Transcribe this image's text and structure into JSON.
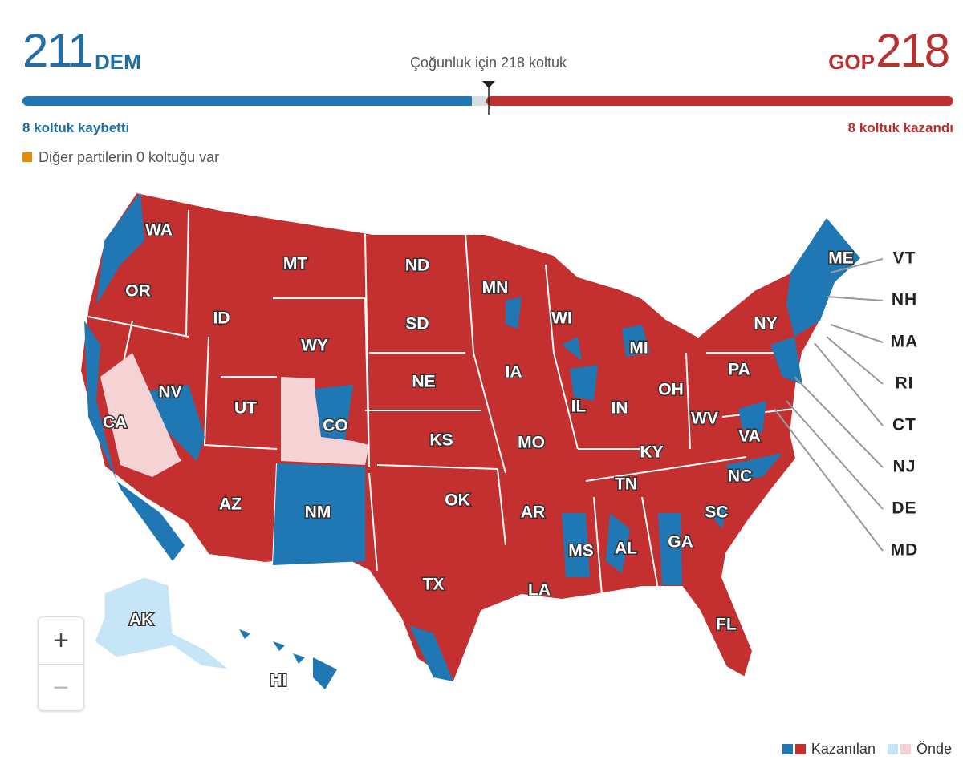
{
  "header": {
    "dem_seats": 211,
    "dem_label": "DEM",
    "majority": "Çoğunluk için 218 koltuk",
    "gop_label": "GOP",
    "gop_seats": 218,
    "dem_change": "8 koltuk kaybetti",
    "gop_change": "8 koltuk kazandı",
    "others": "Diğer partilerin 0 koltuğu var"
  },
  "map": {
    "states": [
      "WA",
      "OR",
      "CA",
      "NV",
      "ID",
      "MT",
      "WY",
      "UT",
      "AZ",
      "CO",
      "NM",
      "ND",
      "SD",
      "NE",
      "KS",
      "OK",
      "TX",
      "MN",
      "IA",
      "MO",
      "AR",
      "LA",
      "WI",
      "IL",
      "MI",
      "IN",
      "OH",
      "KY",
      "TN",
      "MS",
      "AL",
      "GA",
      "FL",
      "SC",
      "NC",
      "VA",
      "WV",
      "PA",
      "NY",
      "ME",
      "AK",
      "HI"
    ],
    "side_states": [
      "VT",
      "NH",
      "MA",
      "RI",
      "CT",
      "NJ",
      "DE",
      "MD"
    ]
  },
  "zoom": {
    "in": "+",
    "out": "−"
  },
  "legend": {
    "won": "Kazanılan",
    "leading": "Önde"
  }
}
